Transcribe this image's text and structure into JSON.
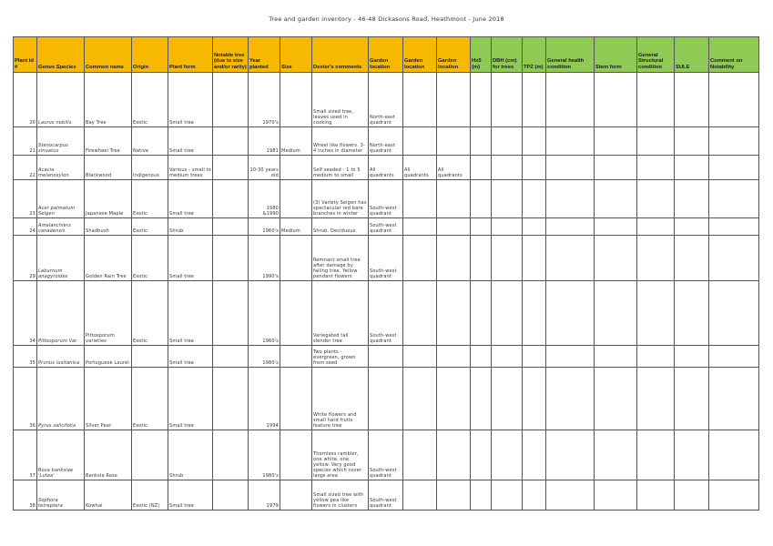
{
  "document": {
    "title": "Tree and garden inventory - 46-48 Dickasons Road, Heathmont - June 2018"
  },
  "columns": [
    {
      "key": "id",
      "label": "Plant id #",
      "color": "#f6b800"
    },
    {
      "key": "genus",
      "label": "Genus Species",
      "color": "#f6b800"
    },
    {
      "key": "common",
      "label": "Common name",
      "color": "#f6b800"
    },
    {
      "key": "origin",
      "label": "Origin",
      "color": "#f6b800"
    },
    {
      "key": "form",
      "label": "Plant form",
      "color": "#f6b800"
    },
    {
      "key": "notable",
      "label": "Notable tree (due to size and/or rarity)",
      "color": "#f6b800"
    },
    {
      "key": "year",
      "label": "Year planted",
      "color": "#f6b800"
    },
    {
      "key": "size",
      "label": "Size",
      "color": "#f6b800"
    },
    {
      "key": "comments",
      "label": "Dexter's comments",
      "color": "#f6b800"
    },
    {
      "key": "loc1",
      "label": "Garden location",
      "color": "#f6b800"
    },
    {
      "key": "loc2",
      "label": "Garden location",
      "color": "#f6b800"
    },
    {
      "key": "loc3",
      "label": "Garden location",
      "color": "#f6b800"
    },
    {
      "key": "hx5",
      "label": "Hx5 (m)",
      "color": "#8fca55"
    },
    {
      "key": "dbh",
      "label": "DBH (cm) for trees",
      "color": "#8fca55"
    },
    {
      "key": "tpz",
      "label": "TPZ (m)",
      "color": "#8fca55"
    },
    {
      "key": "health",
      "label": "General health condition",
      "color": "#8fca55"
    },
    {
      "key": "stem",
      "label": "Stem form",
      "color": "#8fca55"
    },
    {
      "key": "structural",
      "label": "General Structural condition",
      "color": "#8fca55"
    },
    {
      "key": "sule",
      "label": "SULE",
      "color": "#8fca55"
    },
    {
      "key": "notability",
      "label": "Comment on Notability",
      "color": "#8fca55"
    }
  ],
  "rows": [
    {
      "id": "20",
      "genus": "Laurus nobilis",
      "common": "Bay Tree",
      "origin": "Exotic",
      "form": "Small tree",
      "notable": "",
      "year": "1970's",
      "size": "",
      "comments": "Small sized tree, leaves used in cooking",
      "loc1": "North-east quadrant",
      "loc2": "",
      "loc3": ""
    },
    {
      "id": "21",
      "genus": "Stenocarpus sinuatus",
      "common": "Firewheel Tree",
      "origin": "Native",
      "form": "Small tree",
      "notable": "",
      "year": "1981",
      "size": "Medium",
      "comments": "Wheel like flowers. 3-4 inches in diameter",
      "loc1": "North-east quadrant",
      "loc2": "",
      "loc3": ""
    },
    {
      "id": "22",
      "genus": "Acacia melanoxylon",
      "common": "Blackwood",
      "origin": "Indigenous",
      "form": "Various - small to medium trees",
      "notable": "",
      "year": "10-30 years old",
      "size": "",
      "comments": "Self seeded - 1 to 5 medium to small",
      "loc1": "All quadrants",
      "loc2": "All quadrants",
      "loc3": "All quadrants"
    },
    {
      "id": "23",
      "genus": "Acer palmatum Seigen",
      "common": "Japanese Maple",
      "origin": "Exotic",
      "form": "Small tree",
      "notable": "",
      "year": "1980 &1990",
      "size": "",
      "comments": "(3) Variety Seigen has spectacular red bare branches in winter",
      "loc1": "South-west quadrant",
      "loc2": "",
      "loc3": ""
    },
    {
      "id": "24",
      "genus": "Amelanchiers canadensis",
      "common": "Shadbush",
      "origin": "Exotic",
      "form": "Shrub",
      "notable": "",
      "year": "1960's",
      "size": "Medium",
      "comments": "Shrub. Deciduous",
      "loc1": "South-west quadrant",
      "loc2": "",
      "loc3": ""
    },
    {
      "id": "29",
      "genus": "Laburnum anagyroides",
      "common": "Golden Rain Tree",
      "origin": "Exotic",
      "form": "Small tree",
      "notable": "",
      "year": "1990's",
      "size": "",
      "comments": "Remnant small tree after damage by falling tree. Yellow pendant flowers",
      "loc1": "South-west quadrant",
      "loc2": "",
      "loc3": ""
    },
    {
      "id": "34",
      "genus": "Pittosporum Var.",
      "common": "Pittosporum varieties",
      "origin": "Exotic",
      "form": "Small tree",
      "notable": "",
      "year": "1960's",
      "size": "",
      "comments": "Variegated tall slender tree",
      "loc1": "South-west quadrant",
      "loc2": "",
      "loc3": ""
    },
    {
      "id": "35",
      "genus": "Prunus lusitanica",
      "common": "Portuguese Laurel",
      "origin": "",
      "form": "Small tree",
      "notable": "",
      "year": "1980's",
      "size": "",
      "comments": "Two plants - evergreen, grown from seed",
      "loc1": "",
      "loc2": "",
      "loc3": ""
    },
    {
      "id": "36",
      "genus": "Pyrus salicifolia",
      "common": "Silver Pear",
      "origin": "Exotic",
      "form": "Small tree",
      "notable": "",
      "year": "1994",
      "size": "",
      "comments": "White flowers and small hard fruits feature tree",
      "loc1": "",
      "loc2": "",
      "loc3": ""
    },
    {
      "id": "37",
      "genus": "Rosa banksiae 'Lutea'",
      "common": "Banksia Rose",
      "origin": "",
      "form": "Shrub",
      "notable": "",
      "year": "1980's",
      "size": "",
      "comments": "Thornless rambler, one white, one yellow. Very good species which cover large area",
      "loc1": "South-west quadrant",
      "loc2": "",
      "loc3": ""
    },
    {
      "id": "38",
      "genus": "Sophora tetraptera",
      "common": "Kowhai",
      "origin": "Exotic (NZ)",
      "form": "Small tree",
      "notable": "",
      "year": "1979",
      "size": "",
      "comments": "Small sized tree with yellow pea like flowers in clusters",
      "loc1": "South-west quadrant",
      "loc2": "",
      "loc3": ""
    }
  ]
}
